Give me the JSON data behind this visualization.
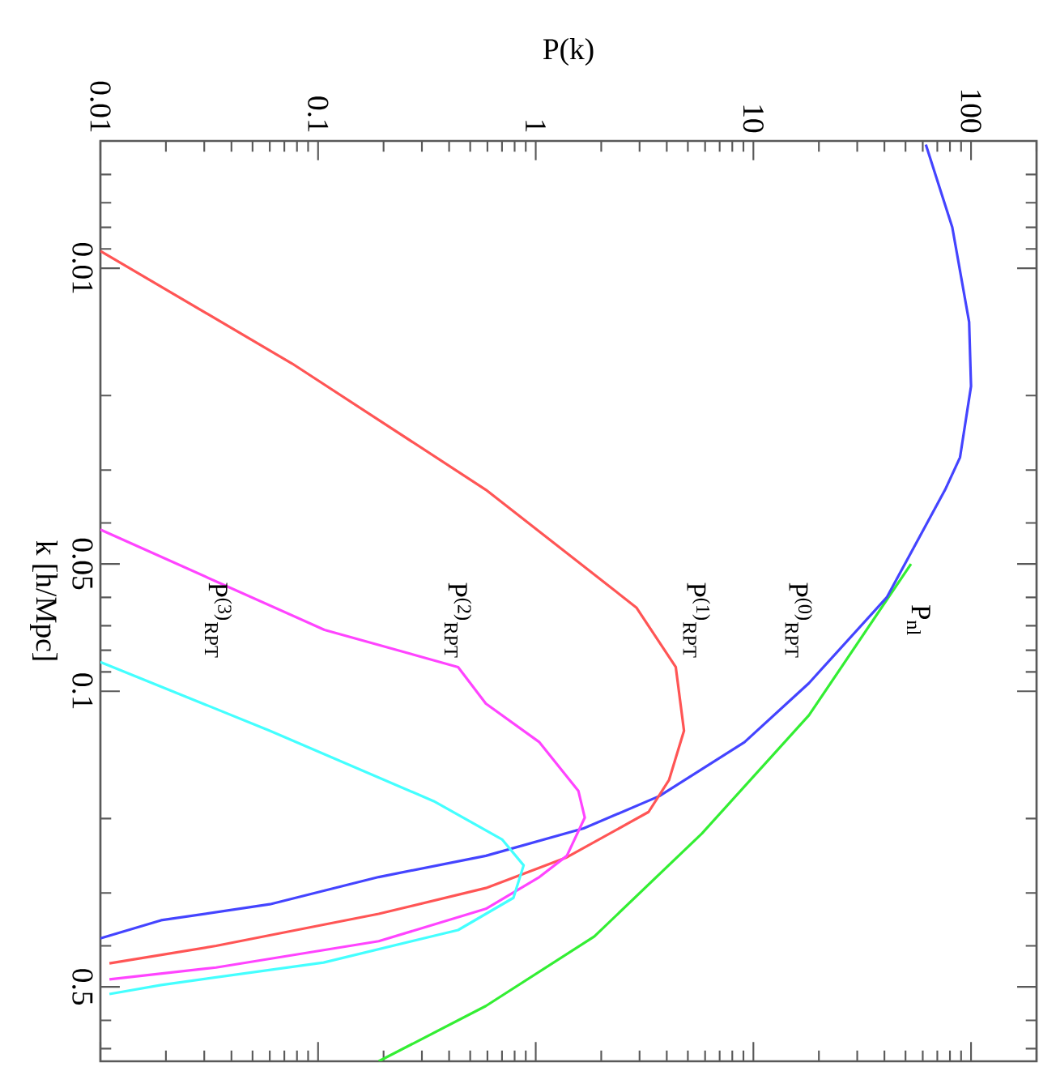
{
  "chart_data": {
    "type": "line",
    "log": "xy",
    "xlabel": "P(k)",
    "ylabel": "k [h/Mpc]",
    "xlim": [
      0.01,
      200
    ],
    "ylim": [
      0.75,
      0.005
    ],
    "xticks": [
      {
        "value": 0.01,
        "label": "0.01"
      },
      {
        "value": 0.02,
        "label": null
      },
      {
        "value": 0.03,
        "label": null
      },
      {
        "value": 0.04,
        "label": null
      },
      {
        "value": 0.05,
        "label": null
      },
      {
        "value": 0.06,
        "label": null
      },
      {
        "value": 0.07,
        "label": null
      },
      {
        "value": 0.08,
        "label": null
      },
      {
        "value": 0.09,
        "label": null
      },
      {
        "value": 0.1,
        "label": "0.1"
      },
      {
        "value": 0.2,
        "label": null
      },
      {
        "value": 0.3,
        "label": null
      },
      {
        "value": 0.4,
        "label": null
      },
      {
        "value": 0.5,
        "label": null
      },
      {
        "value": 0.6,
        "label": null
      },
      {
        "value": 0.7,
        "label": null
      },
      {
        "value": 0.8,
        "label": null
      },
      {
        "value": 0.9,
        "label": null
      },
      {
        "value": 1,
        "label": "1"
      },
      {
        "value": 2,
        "label": null
      },
      {
        "value": 3,
        "label": null
      },
      {
        "value": 4,
        "label": null
      },
      {
        "value": 5,
        "label": null
      },
      {
        "value": 6,
        "label": null
      },
      {
        "value": 7,
        "label": null
      },
      {
        "value": 8,
        "label": null
      },
      {
        "value": 9,
        "label": null
      },
      {
        "value": 10,
        "label": "10"
      },
      {
        "value": 20,
        "label": null
      },
      {
        "value": 30,
        "label": null
      },
      {
        "value": 40,
        "label": null
      },
      {
        "value": 50,
        "label": null
      },
      {
        "value": 60,
        "label": null
      },
      {
        "value": 70,
        "label": null
      },
      {
        "value": 80,
        "label": null
      },
      {
        "value": 90,
        "label": null
      },
      {
        "value": 100,
        "label": "100"
      },
      {
        "value": 200,
        "label": null
      }
    ],
    "yticks": [
      {
        "value": 0.006,
        "label": null
      },
      {
        "value": 0.007,
        "label": null
      },
      {
        "value": 0.008,
        "label": null
      },
      {
        "value": 0.009,
        "label": null
      },
      {
        "value": 0.01,
        "label": "0.01"
      },
      {
        "value": 0.02,
        "label": null
      },
      {
        "value": 0.03,
        "label": null
      },
      {
        "value": 0.04,
        "label": null
      },
      {
        "value": 0.05,
        "label": "0.05"
      },
      {
        "value": 0.06,
        "label": null
      },
      {
        "value": 0.07,
        "label": null
      },
      {
        "value": 0.08,
        "label": null
      },
      {
        "value": 0.09,
        "label": null
      },
      {
        "value": 0.1,
        "label": "0.1"
      },
      {
        "value": 0.2,
        "label": null
      },
      {
        "value": 0.3,
        "label": null
      },
      {
        "value": 0.4,
        "label": null
      },
      {
        "value": 0.5,
        "label": "0.5"
      },
      {
        "value": 0.6,
        "label": null
      },
      {
        "value": 0.7,
        "label": null
      }
    ],
    "series": [
      {
        "color": "#33ee33",
        "values": [
          0.05,
          0.114,
          0.217,
          0.38,
          0.555,
          0.75
        ],
        "x": [
          53,
          18,
          5.8,
          1.86,
          0.59,
          0.19
        ]
      },
      {
        "color": "#4444ff",
        "values": [
          0.0051,
          0.008,
          0.0134,
          0.019,
          0.028,
          0.0334,
          0.06,
          0.0957,
          0.132,
          0.177,
          0.211,
          0.245,
          0.275,
          0.319,
          0.348,
          0.384
        ],
        "x": [
          62,
          82,
          98,
          100,
          89,
          76,
          41,
          18,
          9.1,
          3.7,
          1.66,
          0.59,
          0.19,
          0.06,
          0.019,
          0.01
        ]
      },
      {
        "color": "#ff5555",
        "values": [
          0.0091,
          0.0168,
          0.0334,
          0.0634,
          0.0877,
          0.124,
          0.162,
          0.193,
          0.247,
          0.292,
          0.336,
          0.4,
          0.44
        ],
        "x": [
          0.01,
          0.076,
          0.59,
          2.9,
          4.4,
          4.8,
          4.1,
          3.3,
          1.39,
          0.59,
          0.19,
          0.034,
          0.011
        ]
      },
      {
        "color": "#ff44ff",
        "values": [
          0.0415,
          0.0716,
          0.0877,
          0.107,
          0.132,
          0.172,
          0.199,
          0.245,
          0.275,
          0.327,
          0.39,
          0.45,
          0.48
        ],
        "x": [
          0.01,
          0.107,
          0.44,
          0.59,
          1.04,
          1.57,
          1.68,
          1.39,
          1.04,
          0.59,
          0.19,
          0.034,
          0.011
        ]
      },
      {
        "color": "#44ffff",
        "values": [
          0.0853,
          0.124,
          0.182,
          0.224,
          0.258,
          0.308,
          0.367,
          0.438,
          0.495,
          0.52
        ],
        "x": [
          0.01,
          0.06,
          0.34,
          0.7,
          0.88,
          0.79,
          0.44,
          0.106,
          0.019,
          0.011
        ]
      }
    ],
    "annotations": [
      "P$_{nl}$",
      "P$^{(0)}$$_{RPT}$",
      "P$^{(1)}$$_{RPT}$",
      "P$^{(2)}$$_{RPT}$",
      "P$^{(3)}$$_{RPT}$"
    ]
  }
}
